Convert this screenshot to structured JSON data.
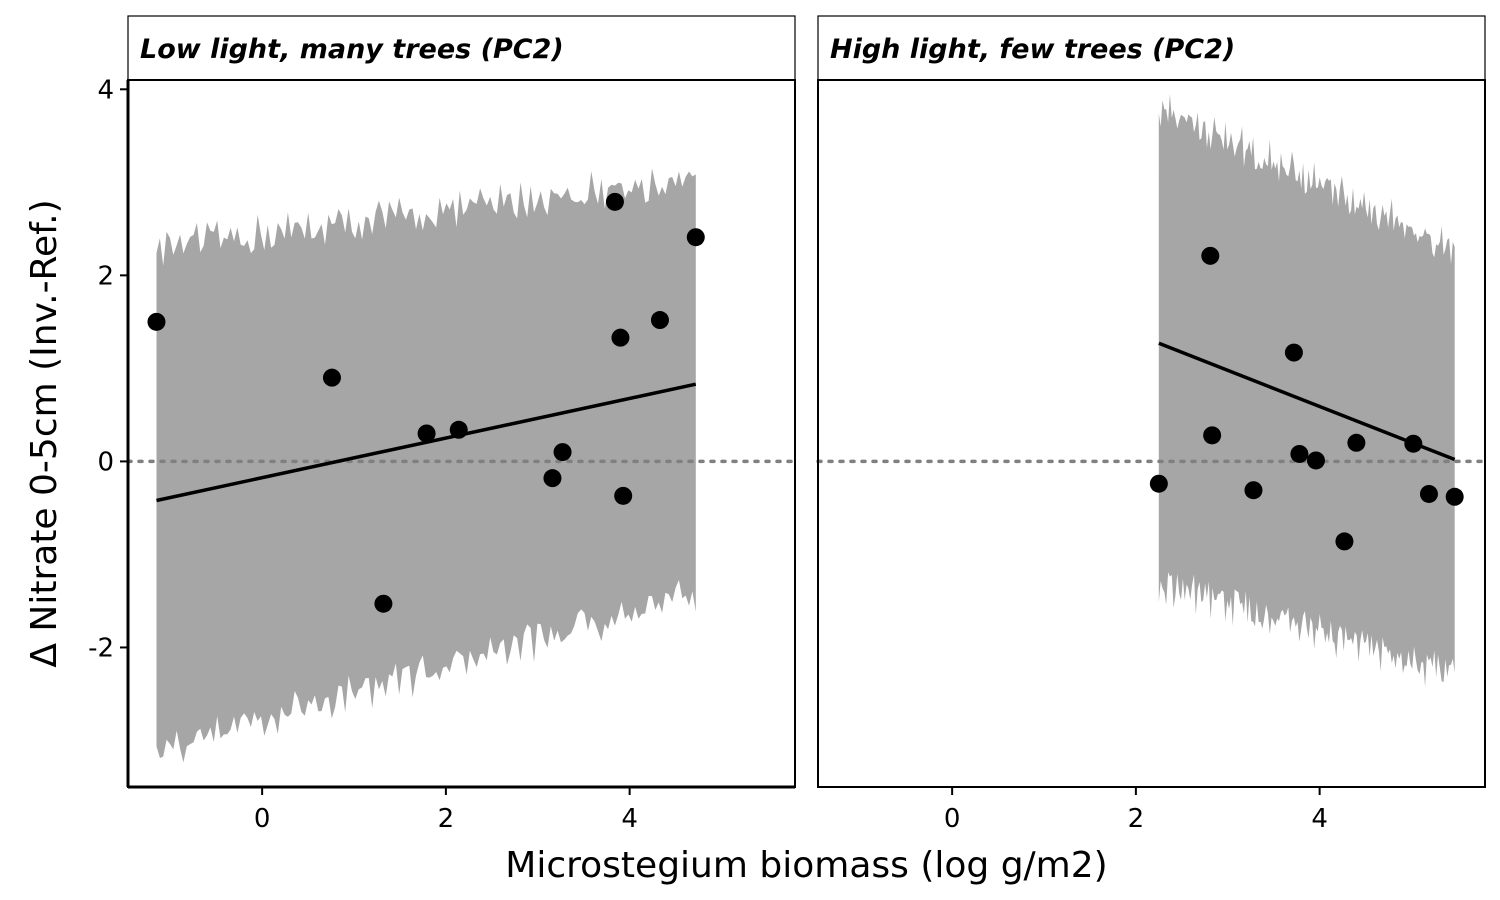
{
  "chart_data": {
    "type": "scatter",
    "xlabel": "Microstegium biomass (log g/m2)",
    "ylabel": "Δ Nitrate 0-5cm (Inv.-Ref.)",
    "xlim": [
      -1.46,
      5.8
    ],
    "ylim": [
      -3.5,
      4.1
    ],
    "x_ticks": [
      0,
      2,
      4
    ],
    "y_ticks": [
      -2,
      0,
      2,
      4
    ],
    "reference_line": {
      "y": 0,
      "style": "dotted",
      "color": "#808080"
    },
    "ribbon_color": "#a6a6a6",
    "point_color": "#000000",
    "panels": [
      {
        "title": "Low light, many trees (PC2)",
        "points": [
          {
            "x": -1.15,
            "y": 1.5
          },
          {
            "x": 0.76,
            "y": 0.9
          },
          {
            "x": 1.32,
            "y": -1.53
          },
          {
            "x": 1.79,
            "y": 0.3
          },
          {
            "x": 2.14,
            "y": 0.34
          },
          {
            "x": 3.16,
            "y": -0.18
          },
          {
            "x": 3.27,
            "y": 0.1
          },
          {
            "x": 3.84,
            "y": 2.79
          },
          {
            "x": 3.9,
            "y": 1.33
          },
          {
            "x": 3.93,
            "y": -0.37
          },
          {
            "x": 4.33,
            "y": 1.52
          },
          {
            "x": 4.72,
            "y": 2.41
          }
        ],
        "fit": {
          "x": [
            -1.15,
            4.72
          ],
          "y": [
            -0.42,
            0.83
          ]
        },
        "ribbon": {
          "x": [
            -1.15,
            4.72
          ],
          "upper": [
            2.25,
            3.0
          ],
          "lower": [
            -3.05,
            -1.38
          ]
        }
      },
      {
        "title": "High light, few trees (PC2)",
        "points": [
          {
            "x": 2.25,
            "y": -0.24
          },
          {
            "x": 2.81,
            "y": 2.21
          },
          {
            "x": 2.83,
            "y": 0.28
          },
          {
            "x": 3.28,
            "y": -0.31
          },
          {
            "x": 3.72,
            "y": 1.17
          },
          {
            "x": 3.78,
            "y": 0.08
          },
          {
            "x": 3.96,
            "y": 0.01
          },
          {
            "x": 4.27,
            "y": -0.86
          },
          {
            "x": 4.4,
            "y": 0.2
          },
          {
            "x": 5.02,
            "y": 0.19
          },
          {
            "x": 5.19,
            "y": -0.35
          },
          {
            "x": 5.47,
            "y": -0.38
          }
        ],
        "fit": {
          "x": [
            2.25,
            5.47
          ],
          "y": [
            1.27,
            0.02
          ]
        },
        "ribbon": {
          "x": [
            2.25,
            5.47
          ],
          "upper": [
            3.75,
            2.25
          ],
          "lower": [
            -1.25,
            -2.25
          ]
        }
      }
    ]
  }
}
